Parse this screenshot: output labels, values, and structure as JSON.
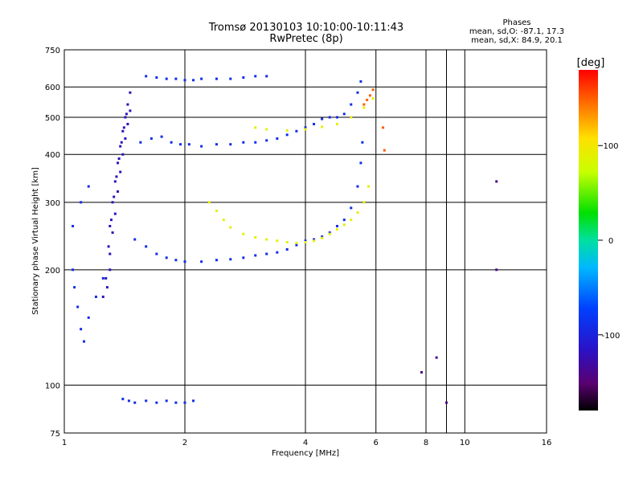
{
  "header": {
    "title_line1": "Tromsø 20130103 10:10:00-10:11:43",
    "title_line2": "RwPretec (8p)",
    "phase_block": {
      "heading": "Phases",
      "line_o": "mean, sd,O: -87.1, 17.3",
      "line_x": "mean, sd,X:  84.9, 20.1"
    }
  },
  "colorbar": {
    "unit_label": "[deg]",
    "tick_labels": [
      "100",
      "0",
      "-100"
    ],
    "ticks": [
      100,
      0,
      -100
    ],
    "range": [
      -180,
      180
    ]
  },
  "chart_data": {
    "type": "scatter",
    "xlabel": "Frequency [MHz]",
    "ylabel": "Stationary phase Virtual Height [km]",
    "xscale": "log",
    "yscale": "log",
    "xlim": [
      1,
      16
    ],
    "ylim": [
      75,
      750
    ],
    "xticks": [
      1,
      2,
      4,
      6,
      8,
      10,
      16
    ],
    "xtick_labels": [
      "1",
      "2",
      "4",
      "6",
      "8",
      "10",
      "16"
    ],
    "yticks": [
      75,
      100,
      200,
      300,
      400,
      500,
      600,
      750
    ],
    "ytick_labels": [
      "75",
      "100",
      "200",
      "300",
      "400",
      "500",
      "600",
      "750"
    ],
    "grid": true,
    "series": [
      {
        "color_value_deg": -90,
        "points": [
          [
            1.55,
            430
          ],
          [
            1.65,
            440
          ],
          [
            1.75,
            445
          ],
          [
            1.85,
            430
          ],
          [
            1.95,
            425
          ],
          [
            2.05,
            425
          ],
          [
            2.2,
            420
          ],
          [
            2.4,
            425
          ],
          [
            2.6,
            425
          ],
          [
            2.8,
            430
          ],
          [
            3.0,
            430
          ],
          [
            3.2,
            435
          ],
          [
            3.4,
            440
          ],
          [
            3.6,
            450
          ],
          [
            3.8,
            460
          ],
          [
            4.0,
            470
          ],
          [
            4.2,
            480
          ],
          [
            4.4,
            495
          ],
          [
            4.6,
            500
          ],
          [
            4.8,
            500
          ],
          [
            5.0,
            510
          ],
          [
            5.2,
            540
          ],
          [
            5.4,
            580
          ],
          [
            5.5,
            620
          ],
          [
            1.6,
            640
          ],
          [
            1.7,
            635
          ],
          [
            1.8,
            630
          ],
          [
            1.9,
            630
          ],
          [
            2.0,
            625
          ],
          [
            2.1,
            625
          ],
          [
            2.2,
            630
          ],
          [
            2.4,
            630
          ],
          [
            2.6,
            630
          ],
          [
            2.8,
            635
          ],
          [
            3.0,
            640
          ],
          [
            3.2,
            640
          ],
          [
            1.5,
            240
          ],
          [
            1.6,
            230
          ],
          [
            1.7,
            220
          ],
          [
            1.8,
            215
          ],
          [
            1.9,
            212
          ],
          [
            2.0,
            210
          ],
          [
            2.2,
            210
          ],
          [
            2.4,
            212
          ],
          [
            2.6,
            213
          ],
          [
            2.8,
            215
          ],
          [
            3.0,
            218
          ],
          [
            3.2,
            220
          ],
          [
            3.4,
            222
          ],
          [
            3.6,
            226
          ],
          [
            3.8,
            232
          ],
          [
            4.0,
            238
          ],
          [
            4.2,
            240
          ],
          [
            4.4,
            244
          ],
          [
            4.6,
            250
          ],
          [
            4.8,
            260
          ],
          [
            5.0,
            270
          ],
          [
            5.2,
            290
          ],
          [
            5.4,
            330
          ],
          [
            5.5,
            380
          ],
          [
            5.55,
            430
          ],
          [
            1.05,
            200
          ],
          [
            1.06,
            180
          ],
          [
            1.08,
            160
          ],
          [
            1.1,
            140
          ],
          [
            1.12,
            130
          ],
          [
            1.15,
            150
          ],
          [
            1.2,
            170
          ],
          [
            1.25,
            190
          ],
          [
            1.05,
            260
          ],
          [
            1.1,
            300
          ],
          [
            1.15,
            330
          ],
          [
            1.4,
            92
          ],
          [
            1.45,
            91
          ],
          [
            1.5,
            90
          ],
          [
            1.6,
            91
          ],
          [
            1.7,
            90
          ],
          [
            1.8,
            91
          ],
          [
            1.9,
            90
          ],
          [
            2.0,
            90
          ],
          [
            2.1,
            91
          ]
        ]
      },
      {
        "color_value_deg": -120,
        "points": [
          [
            1.3,
            200
          ],
          [
            1.3,
            260
          ],
          [
            1.32,
            300
          ],
          [
            1.34,
            340
          ],
          [
            1.36,
            380
          ],
          [
            1.38,
            420
          ],
          [
            1.4,
            460
          ],
          [
            1.42,
            500
          ],
          [
            1.44,
            540
          ],
          [
            1.46,
            580
          ],
          [
            1.28,
            180
          ],
          [
            1.3,
            220
          ],
          [
            1.32,
            250
          ],
          [
            1.34,
            280
          ],
          [
            1.36,
            320
          ],
          [
            1.38,
            360
          ],
          [
            1.4,
            400
          ],
          [
            1.42,
            440
          ],
          [
            1.44,
            480
          ],
          [
            1.46,
            520
          ],
          [
            1.25,
            170
          ],
          [
            1.27,
            190
          ],
          [
            1.29,
            230
          ],
          [
            1.31,
            270
          ],
          [
            1.33,
            310
          ],
          [
            1.35,
            350
          ],
          [
            1.37,
            390
          ],
          [
            1.39,
            430
          ],
          [
            1.41,
            470
          ],
          [
            1.43,
            510
          ]
        ]
      },
      {
        "color_value_deg": 90,
        "points": [
          [
            2.3,
            300
          ],
          [
            2.4,
            285
          ],
          [
            2.5,
            270
          ],
          [
            2.6,
            258
          ],
          [
            2.8,
            248
          ],
          [
            3.0,
            243
          ],
          [
            3.2,
            240
          ],
          [
            3.4,
            238
          ],
          [
            3.6,
            236
          ],
          [
            3.8,
            235
          ],
          [
            4.0,
            236
          ],
          [
            4.2,
            238
          ],
          [
            4.4,
            242
          ],
          [
            4.6,
            248
          ],
          [
            4.8,
            255
          ],
          [
            5.0,
            262
          ],
          [
            5.2,
            270
          ],
          [
            5.4,
            282
          ],
          [
            5.6,
            300
          ],
          [
            5.75,
            330
          ],
          [
            3.0,
            470
          ],
          [
            3.2,
            465
          ],
          [
            3.6,
            462
          ],
          [
            4.0,
            465
          ],
          [
            4.4,
            472
          ],
          [
            4.8,
            480
          ],
          [
            5.2,
            500
          ],
          [
            5.6,
            530
          ],
          [
            5.9,
            560
          ]
        ]
      },
      {
        "color_value_deg": 150,
        "points": [
          [
            5.6,
            540
          ],
          [
            5.7,
            555
          ],
          [
            5.8,
            570
          ],
          [
            5.9,
            590
          ],
          [
            6.25,
            470
          ],
          [
            6.3,
            410
          ]
        ]
      },
      {
        "color_value_deg": -140,
        "points": [
          [
            7.8,
            108
          ],
          [
            8.5,
            118
          ],
          [
            9.0,
            90
          ],
          [
            12.0,
            200
          ],
          [
            12.0,
            340
          ]
        ]
      }
    ]
  }
}
